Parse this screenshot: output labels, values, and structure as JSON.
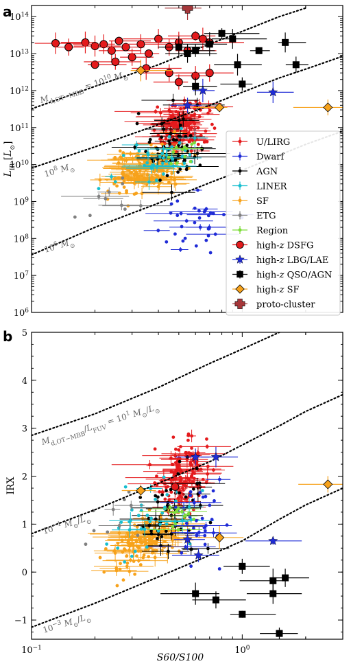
{
  "chart_data": [
    {
      "panel": "a",
      "type": "scatter",
      "xlabel": "",
      "ylabel": "L_IR [L_⊙]",
      "xscale": "log",
      "yscale": "log",
      "xlim": [
        0.1,
        3.0
      ],
      "ylim": [
        1000000,
        200000000000000
      ],
      "xticks": [
        {
          "v": 0.1,
          "b": "10",
          "e": "−1"
        },
        {
          "v": 1,
          "b": "10",
          "e": "0"
        }
      ],
      "yticks": [
        {
          "v": 1000000.0,
          "b": "10",
          "e": "6"
        },
        {
          "v": 10000000.0,
          "b": "10",
          "e": "7"
        },
        {
          "v": 100000000.0,
          "b": "10",
          "e": "8"
        },
        {
          "v": 1000000000.0,
          "b": "10",
          "e": "9"
        },
        {
          "v": 10000000000.0,
          "b": "10",
          "e": "10"
        },
        {
          "v": 100000000000.0,
          "b": "10",
          "e": "11"
        },
        {
          "v": 1000000000000.0,
          "b": "10",
          "e": "12"
        },
        {
          "v": 10000000000000.0,
          "b": "10",
          "e": "13"
        },
        {
          "v": 100000000000000.0,
          "b": "10",
          "e": "14"
        }
      ],
      "curves": [
        {
          "label": "M_d,OT−MBB = 10^10 M_⊙",
          "points": [
            [
              0.1,
              320000000000.0
            ],
            [
              0.2,
              1300000000000.0
            ],
            [
              0.4,
              5000000000000.0
            ],
            [
              0.7,
              18000000000000.0
            ],
            [
              1.0,
              40000000000000.0
            ],
            [
              1.5,
              100000000000000.0
            ],
            [
              2.0,
              170000000000000.0
            ]
          ]
        },
        {
          "label": "10^8 M_⊙",
          "points": [
            [
              0.1,
              8000000000.0
            ],
            [
              0.2,
              30000000000.0
            ],
            [
              0.4,
              120000000000.0
            ],
            [
              0.7,
              400000000000.0
            ],
            [
              1.0,
              900000000000.0
            ],
            [
              1.5,
              2200000000000.0
            ],
            [
              2.0,
              3800000000000.0
            ],
            [
              3.0,
              8500000000000.0
            ]
          ]
        },
        {
          "label": "10^6 M_⊙",
          "points": [
            [
              0.1,
              36000000.0
            ],
            [
              0.2,
              200000000.0
            ],
            [
              0.4,
              900000000.0
            ],
            [
              0.7,
              3200000000.0
            ],
            [
              1.0,
              7000000000.0
            ],
            [
              1.5,
              18000000000.0
            ],
            [
              2.0,
              35000000000.0
            ],
            [
              3.0,
              80000000000.0
            ]
          ]
        }
      ],
      "series": [
        {
          "name": "high-z DSFG",
          "color": "#e41a1c",
          "marker": "circle-large",
          "points": [
            [
              0.13,
              19000000000000.0
            ],
            [
              0.15,
              15000000000000.0
            ],
            [
              0.18,
              20000000000000.0
            ],
            [
              0.2,
              16000000000000.0
            ],
            [
              0.22,
              18000000000000.0
            ],
            [
              0.24,
              12000000000000.0
            ],
            [
              0.26,
              22000000000000.0
            ],
            [
              0.28,
              15000000000000.0
            ],
            [
              0.3,
              8000000000000.0
            ],
            [
              0.33,
              18000000000000.0
            ],
            [
              0.36,
              10000000000000.0
            ],
            [
              0.4,
              25000000000000.0
            ],
            [
              0.45,
              15000000000000.0
            ],
            [
              0.5,
              20000000000000.0
            ],
            [
              0.55,
              12000000000000.0
            ],
            [
              0.6,
              30000000000000.0
            ],
            [
              0.65,
              25000000000000.0
            ],
            [
              0.7,
              20000000000000.0
            ],
            [
              0.2,
              5000000000000.0
            ],
            [
              0.25,
              6000000000000.0
            ],
            [
              0.35,
              4000000000000.0
            ],
            [
              0.45,
              3000000000000.0
            ],
            [
              0.5,
              1700000000000.0
            ],
            [
              0.6,
              2500000000000.0
            ],
            [
              0.7,
              3000000000000.0
            ]
          ]
        },
        {
          "name": "high-z LBG/LAE",
          "color": "#1f2bd6",
          "marker": "star",
          "points": [
            [
              0.65,
              1000000000000.0
            ],
            [
              1.4,
              900000000000.0
            ],
            [
              0.55,
              400000000000.0
            ]
          ]
        },
        {
          "name": "high-z QSO/AGN",
          "color": "#000000",
          "marker": "square",
          "points": [
            [
              0.8,
              35000000000000.0
            ],
            [
              0.9,
              25000000000000.0
            ],
            [
              0.7,
              18000000000000.0
            ],
            [
              0.6,
              12000000000000.0
            ],
            [
              0.55,
              10000000000000.0
            ],
            [
              0.5,
              15000000000000.0
            ],
            [
              0.95,
              5000000000000.0
            ],
            [
              1.2,
              12000000000000.0
            ],
            [
              1.6,
              20000000000000.0
            ],
            [
              1.8,
              5000000000000.0
            ],
            [
              1.0,
              1500000000000.0
            ],
            [
              0.6,
              1300000000000.0
            ]
          ]
        },
        {
          "name": "high-z SF",
          "color": "#f7a21b",
          "marker": "diamond",
          "points": [
            [
              0.33,
              3500000000000.0
            ],
            [
              0.78,
              350000000000.0
            ],
            [
              2.55,
              350000000000.0
            ]
          ]
        },
        {
          "name": "proto-cluster",
          "color": "#a6373a",
          "marker": "plus",
          "points": [
            [
              0.55,
              170000000000000.0
            ]
          ]
        }
      ],
      "legend": {
        "placement": "lower-right",
        "entries": [
          {
            "label": "U/LIRG",
            "color": "#e41a1c",
            "marker": "dot"
          },
          {
            "label": "Dwarf",
            "color": "#1f2bd6",
            "marker": "dot"
          },
          {
            "label": "AGN",
            "color": "#000000",
            "marker": "dot"
          },
          {
            "label": "LINER",
            "color": "#17becf",
            "marker": "dot"
          },
          {
            "label": "SF",
            "color": "#f7a21b",
            "marker": "dot"
          },
          {
            "label": "ETG",
            "color": "#808080",
            "marker": "dot"
          },
          {
            "label": "Region",
            "color": "#7ddc3a",
            "marker": "dot"
          },
          {
            "label": "high-z DSFG",
            "color": "#e41a1c",
            "marker": "circle-large"
          },
          {
            "label": "high-z LBG/LAE",
            "color": "#1f2bd6",
            "marker": "star"
          },
          {
            "label": "high-z QSO/AGN",
            "color": "#000000",
            "marker": "square"
          },
          {
            "label": "high-z SF",
            "color": "#f7a21b",
            "marker": "diamond"
          },
          {
            "label": "proto-cluster",
            "color": "#a6373a",
            "marker": "plus"
          }
        ]
      }
    },
    {
      "panel": "b",
      "type": "scatter",
      "xlabel": "S60/S100",
      "ylabel": "IRX",
      "xscale": "log",
      "yscale": "linear",
      "xlim": [
        0.1,
        3.0
      ],
      "ylim": [
        -1.4,
        5.0
      ],
      "xticks": [
        {
          "v": 0.1,
          "b": "10",
          "e": "−1"
        },
        {
          "v": 1,
          "b": "10",
          "e": "0"
        }
      ],
      "yticks": [
        {
          "v": -1,
          "t": "−1"
        },
        {
          "v": 0,
          "t": "0"
        },
        {
          "v": 1,
          "t": "1"
        },
        {
          "v": 2,
          "t": "2"
        },
        {
          "v": 3,
          "t": "3"
        },
        {
          "v": 4,
          "t": "4"
        },
        {
          "v": 5,
          "t": "5"
        }
      ],
      "curves": [
        {
          "label": "M_d,OT−MBB/L_FUV = 10^1 M_⊙/L_⊙",
          "points": [
            [
              0.1,
              2.85
            ],
            [
              0.2,
              3.3
            ],
            [
              0.4,
              3.85
            ],
            [
              0.7,
              4.35
            ],
            [
              1.0,
              4.65
            ],
            [
              1.5,
              5.0
            ]
          ]
        },
        {
          "label": "10^−1 M_⊙/L_⊙",
          "points": [
            [
              0.1,
              0.8
            ],
            [
              0.2,
              1.3
            ],
            [
              0.4,
              1.85
            ],
            [
              0.7,
              2.3
            ],
            [
              1.0,
              2.65
            ],
            [
              1.5,
              3.05
            ],
            [
              2.0,
              3.35
            ],
            [
              3.0,
              3.7
            ]
          ]
        },
        {
          "label": "10^−3 M_⊙/L_⊙",
          "points": [
            [
              0.1,
              -1.15
            ],
            [
              0.2,
              -0.65
            ],
            [
              0.4,
              -0.1
            ],
            [
              0.7,
              0.35
            ],
            [
              1.0,
              0.65
            ],
            [
              1.5,
              1.1
            ],
            [
              2.0,
              1.4
            ],
            [
              3.0,
              1.75
            ]
          ]
        }
      ],
      "series": [
        {
          "name": "high-z DSFG",
          "color": "#e41a1c",
          "marker": "circle-large",
          "points": [
            [
              0.48,
              1.78
            ]
          ]
        },
        {
          "name": "high-z LBG/LAE",
          "color": "#1f2bd6",
          "marker": "star",
          "points": [
            [
              0.6,
              2.4
            ],
            [
              0.75,
              2.4
            ],
            [
              0.55,
              0.68
            ],
            [
              0.62,
              0.35
            ],
            [
              1.4,
              0.65
            ]
          ]
        },
        {
          "name": "high-z QSO/AGN",
          "color": "#000000",
          "marker": "square",
          "points": [
            [
              1.0,
              0.12
            ],
            [
              1.4,
              -0.18
            ],
            [
              1.6,
              -0.12
            ],
            [
              1.4,
              -0.45
            ],
            [
              0.6,
              -0.45
            ],
            [
              0.75,
              -0.58
            ],
            [
              1.0,
              -0.88
            ],
            [
              1.5,
              -1.28
            ]
          ]
        },
        {
          "name": "high-z SF",
          "color": "#f7a21b",
          "marker": "diamond",
          "points": [
            [
              0.33,
              1.7
            ],
            [
              0.78,
              0.72
            ],
            [
              2.55,
              1.83
            ]
          ]
        }
      ]
    }
  ]
}
